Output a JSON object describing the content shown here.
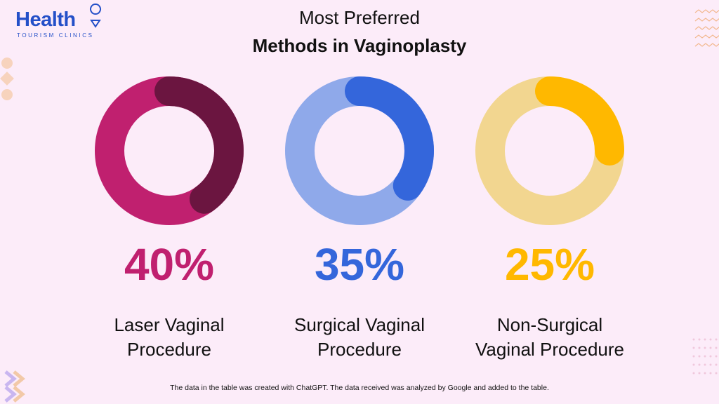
{
  "header": {
    "logo": "Health",
    "logo_sub": "TOURISM CLINICS",
    "title": "Most Preferred",
    "subtitle": "Methods in Vaginoplasty"
  },
  "chart_data": [
    {
      "type": "donut",
      "categories": [
        "Laser Vaginal Procedure"
      ],
      "values": [
        40
      ],
      "value_labels": [
        "40%"
      ],
      "color": "#6b1540",
      "track_color": "#c0206f",
      "label_color": "#c0206f"
    },
    {
      "type": "donut",
      "categories": [
        "Surgical Vaginal Procedure"
      ],
      "values": [
        35
      ],
      "value_labels": [
        "35%"
      ],
      "color": "#3466db",
      "track_color": "#8fa9ea",
      "label_color": "#3466db"
    },
    {
      "type": "donut",
      "categories": [
        "Non-Surgical Vaginal Procedure"
      ],
      "values": [
        25
      ],
      "value_labels": [
        "25%"
      ],
      "color": "#ffb800",
      "track_color": "#f2d690",
      "label_color": "#ffb800"
    }
  ],
  "footer": "The data in the table was created with ChatGPT. The data received was analyzed by Google and added to the table."
}
